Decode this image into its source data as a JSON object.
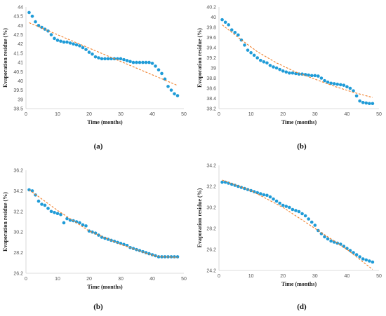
{
  "figure": {
    "panel_labels": [
      "(a)",
      "(b)",
      "(b)",
      "(d)"
    ]
  },
  "chart_data": [
    {
      "type": "scatter",
      "label": "(a)",
      "xlabel": "Time (months)",
      "ylabel": "Evaporation residue (%)",
      "xlim": [
        0,
        50
      ],
      "ylim": [
        38.5,
        44
      ],
      "xticks": [
        0,
        10,
        20,
        30,
        40,
        50
      ],
      "yticks": [
        38.5,
        39,
        39.5,
        40,
        40.5,
        41,
        41.5,
        42,
        42.5,
        43,
        43.5,
        44
      ],
      "y_decimals": 1,
      "marker_color": "#1f9bd7",
      "trend_color": "#f07f2a",
      "x": [
        1,
        2,
        3,
        4,
        5,
        6,
        7,
        8,
        9,
        10,
        11,
        12,
        13,
        14,
        15,
        16,
        17,
        18,
        19,
        20,
        21,
        22,
        23,
        24,
        25,
        26,
        27,
        28,
        29,
        30,
        31,
        32,
        33,
        34,
        35,
        36,
        37,
        38,
        39,
        40,
        41,
        42,
        43,
        44,
        45,
        46,
        47,
        48
      ],
      "values": [
        43.7,
        43.5,
        43.2,
        43.0,
        42.9,
        42.8,
        42.7,
        42.5,
        42.3,
        42.2,
        42.15,
        42.1,
        42.1,
        42.05,
        42.0,
        41.95,
        41.9,
        41.8,
        41.7,
        41.55,
        41.45,
        41.3,
        41.25,
        41.2,
        41.2,
        41.2,
        41.2,
        41.2,
        41.2,
        41.2,
        41.15,
        41.1,
        41.05,
        41.0,
        41.0,
        41.0,
        41.0,
        41.0,
        41.0,
        40.95,
        40.8,
        40.6,
        40.4,
        40.1,
        39.7,
        39.5,
        39.3,
        39.2
      ],
      "trend": {
        "x": [
          1,
          48
        ],
        "y": [
          43.15,
          39.75
        ]
      }
    },
    {
      "type": "scatter",
      "label": "(b)",
      "xlabel": "Time (months)",
      "ylabel": "Evaporation residue (%)",
      "xlim": [
        0,
        50
      ],
      "ylim": [
        38.2,
        40.2
      ],
      "xticks": [
        0,
        10,
        20,
        30,
        40,
        50
      ],
      "yticks": [
        38.2,
        38.4,
        38.6,
        38.8,
        39,
        39.2,
        39.4,
        39.6,
        39.8,
        40,
        40.2
      ],
      "y_decimals": 1,
      "marker_color": "#1f9bd7",
      "trend_color": "#f07f2a",
      "x": [
        1,
        2,
        3,
        4,
        5,
        6,
        7,
        8,
        9,
        10,
        11,
        12,
        13,
        14,
        15,
        16,
        17,
        18,
        19,
        20,
        21,
        22,
        23,
        24,
        25,
        26,
        27,
        28,
        29,
        30,
        31,
        32,
        33,
        34,
        35,
        36,
        37,
        38,
        39,
        40,
        41,
        42,
        43,
        44,
        45,
        46,
        47,
        48
      ],
      "values": [
        39.95,
        39.9,
        39.85,
        39.75,
        39.7,
        39.65,
        39.55,
        39.45,
        39.35,
        39.3,
        39.25,
        39.2,
        39.15,
        39.12,
        39.1,
        39.05,
        39.02,
        39.0,
        38.97,
        38.94,
        38.92,
        38.9,
        38.9,
        38.89,
        38.88,
        38.88,
        38.87,
        38.86,
        38.85,
        38.85,
        38.84,
        38.8,
        38.75,
        38.72,
        38.7,
        38.69,
        38.68,
        38.67,
        38.66,
        38.63,
        38.6,
        38.55,
        38.45,
        38.35,
        38.32,
        38.31,
        38.3,
        38.3
      ],
      "trend": {
        "x": [
          1,
          6,
          12,
          18,
          24,
          30,
          36,
          42,
          48
        ],
        "y": [
          39.85,
          39.6,
          39.32,
          39.1,
          38.92,
          38.78,
          38.64,
          38.52,
          38.42
        ]
      }
    },
    {
      "type": "scatter",
      "label": "(b)",
      "xlabel": "Time (months)",
      "ylabel": "Evaporation residue (%)",
      "xlim": [
        0,
        50
      ],
      "ylim": [
        26.2,
        36.2
      ],
      "xticks": [
        0,
        10,
        20,
        30,
        40,
        50
      ],
      "yticks": [
        26.2,
        28.2,
        30.2,
        32.2,
        34.2,
        36.2
      ],
      "y_decimals": 1,
      "marker_color": "#1f9bd7",
      "trend_color": "#f07f2a",
      "x": [
        1,
        2,
        3,
        4,
        5,
        6,
        7,
        8,
        9,
        10,
        11,
        12,
        13,
        14,
        15,
        16,
        17,
        18,
        19,
        20,
        21,
        22,
        23,
        24,
        25,
        26,
        27,
        28,
        29,
        30,
        31,
        32,
        33,
        34,
        35,
        36,
        37,
        38,
        39,
        40,
        41,
        42,
        43,
        44,
        45,
        46,
        47,
        48
      ],
      "values": [
        34.3,
        34.2,
        33.8,
        33.2,
        32.9,
        32.8,
        32.5,
        32.2,
        32.1,
        32.0,
        31.9,
        31.1,
        31.5,
        31.35,
        31.3,
        31.2,
        31.1,
        30.9,
        30.8,
        30.3,
        30.2,
        30.1,
        29.9,
        29.7,
        29.6,
        29.5,
        29.4,
        29.3,
        29.2,
        29.1,
        29.0,
        28.9,
        28.7,
        28.6,
        28.5,
        28.4,
        28.3,
        28.2,
        28.1,
        28.0,
        27.9,
        27.8,
        27.8,
        27.8,
        27.8,
        27.8,
        27.8,
        27.8
      ],
      "trend": {
        "x": [
          1,
          10,
          20,
          30,
          38,
          42,
          48
        ],
        "y": [
          34.3,
          32.3,
          30.3,
          29.0,
          28.15,
          27.8,
          27.75
        ]
      }
    },
    {
      "type": "scatter",
      "label": "(d)",
      "xlabel": "Time (months)",
      "ylabel": "Evaporation residue (%)",
      "xlim": [
        0,
        50
      ],
      "ylim": [
        24.2,
        34.2
      ],
      "xticks": [
        0,
        10,
        20,
        30,
        40,
        50
      ],
      "yticks": [
        24.2,
        26.2,
        28.2,
        30.2,
        32.2,
        34.2
      ],
      "y_decimals": 1,
      "marker_color": "#1f9bd7",
      "trend_color": "#f07f2a",
      "x": [
        1,
        2,
        3,
        4,
        5,
        6,
        7,
        8,
        9,
        10,
        11,
        12,
        13,
        14,
        15,
        16,
        17,
        18,
        19,
        20,
        21,
        22,
        23,
        24,
        25,
        26,
        27,
        28,
        29,
        30,
        31,
        32,
        33,
        34,
        35,
        36,
        37,
        38,
        39,
        40,
        41,
        42,
        43,
        44,
        45,
        46,
        47,
        48
      ],
      "values": [
        32.6,
        32.6,
        32.5,
        32.4,
        32.3,
        32.2,
        32.1,
        32.0,
        31.9,
        31.8,
        31.7,
        31.6,
        31.5,
        31.4,
        31.35,
        31.2,
        31.0,
        30.8,
        30.6,
        30.4,
        30.3,
        30.2,
        30.0,
        29.9,
        29.8,
        29.6,
        29.4,
        29.1,
        28.8,
        28.5,
        28.0,
        27.7,
        27.4,
        27.2,
        27.0,
        26.9,
        26.8,
        26.7,
        26.5,
        26.3,
        26.1,
        25.9,
        25.7,
        25.5,
        25.3,
        25.2,
        25.1,
        25.0
      ],
      "trend": {
        "x": [
          1,
          10,
          20,
          30,
          40,
          48
        ],
        "y": [
          32.8,
          31.8,
          30.2,
          28.2,
          26.2,
          24.3
        ]
      }
    }
  ]
}
